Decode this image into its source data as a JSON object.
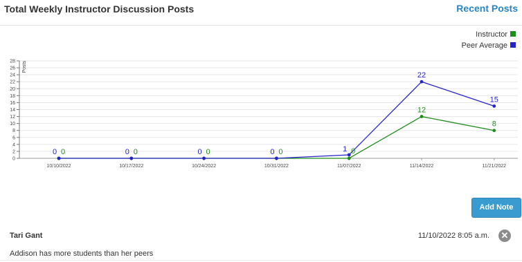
{
  "header": {
    "title": "Total Weekly Instructor Discussion Posts",
    "recent_link": "Recent Posts"
  },
  "chart_data": {
    "type": "line",
    "categories": [
      "10/10/2022",
      "10/17/2022",
      "10/24/2022",
      "10/31/2022",
      "11/07/2022",
      "11/14/2022",
      "11/21/2022"
    ],
    "series": [
      {
        "name": "Instructor",
        "color": "#1f8c1f",
        "values": [
          0,
          0,
          0,
          0,
          0,
          12,
          8
        ]
      },
      {
        "name": "Peer Average",
        "color": "#2323c8",
        "values": [
          0,
          0,
          0,
          0,
          1,
          22,
          15
        ]
      }
    ],
    "ylabel": "Posts",
    "ylim": [
      0,
      28
    ],
    "yticks": [
      0,
      2,
      4,
      6,
      8,
      10,
      12,
      14,
      16,
      18,
      20,
      22,
      24,
      26,
      28
    ],
    "grid": true,
    "legend_position": "top-right"
  },
  "legend": [
    {
      "label": "Instructor",
      "color": "#1f8c1f"
    },
    {
      "label": "Peer Average",
      "color": "#2323c8"
    }
  ],
  "actions": {
    "add_note": "Add Note"
  },
  "note": {
    "author": "Tari Gant",
    "timestamp": "11/10/2022 8:05 a.m.",
    "text": "Addison has more students than her peers",
    "close_icon": "close-icon"
  }
}
